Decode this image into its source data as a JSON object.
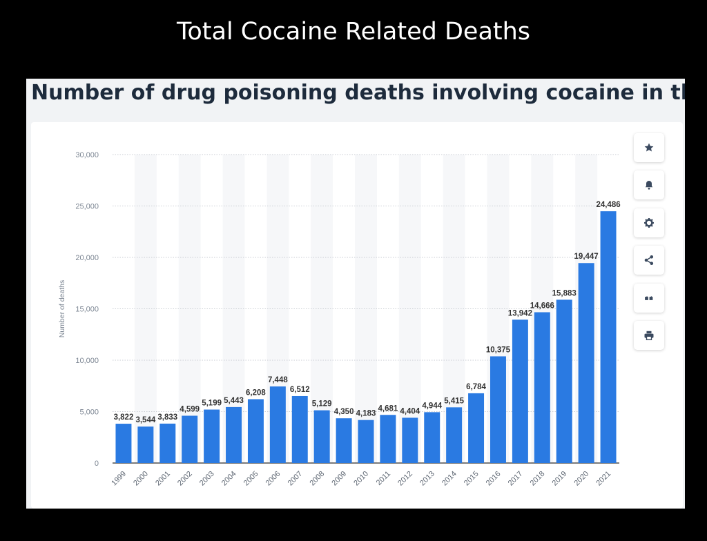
{
  "slide": {
    "title": "Total Cocaine Related Deaths"
  },
  "toolbar": {
    "buttons": [
      {
        "name": "favorite-button",
        "icon": "star-icon"
      },
      {
        "name": "notification-button",
        "icon": "bell-icon"
      },
      {
        "name": "settings-button",
        "icon": "gear-icon"
      },
      {
        "name": "share-button",
        "icon": "share-icon"
      },
      {
        "name": "cite-button",
        "icon": "quote-icon"
      },
      {
        "name": "print-button",
        "icon": "printer-icon"
      }
    ]
  },
  "chart_data": {
    "type": "bar",
    "title": "Number of drug poisoning deaths involving cocaine in the U.S",
    "ylabel": "Number of deaths",
    "xlabel": "",
    "ylim": [
      0,
      30000
    ],
    "yticks": [
      0,
      5000,
      10000,
      15000,
      20000,
      25000,
      30000
    ],
    "categories": [
      "1999",
      "2000",
      "2001",
      "2002",
      "2003",
      "2004",
      "2005",
      "2006",
      "2007",
      "2008",
      "2009",
      "2010",
      "2011",
      "2012",
      "2013",
      "2014",
      "2015",
      "2016",
      "2017",
      "2018",
      "2019",
      "2020",
      "2021"
    ],
    "values": [
      3822,
      3544,
      3833,
      4599,
      5199,
      5443,
      6208,
      7448,
      6512,
      5129,
      4350,
      4183,
      4681,
      4404,
      4944,
      5415,
      6784,
      10375,
      13942,
      14666,
      15883,
      19447,
      24486
    ],
    "bar_color": "#2a7ae2",
    "grid": true,
    "legend": "none"
  }
}
